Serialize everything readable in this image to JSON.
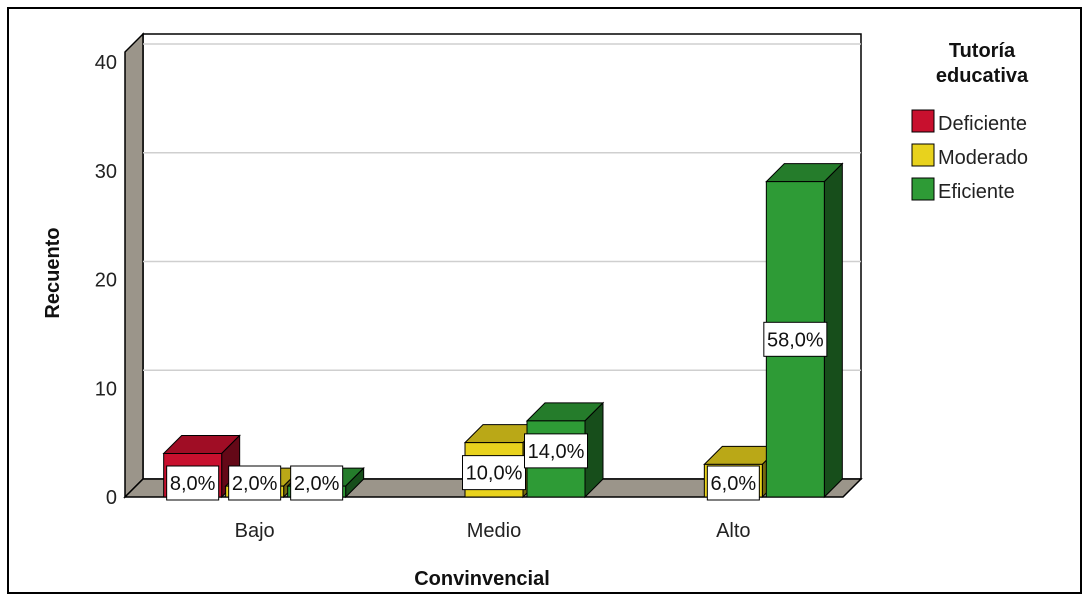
{
  "chart_data": {
    "type": "bar",
    "style": "3d-clustered",
    "xlabel": "Convinvencial",
    "ylabel": "Recuento",
    "ylim": [
      0,
      40
    ],
    "yticks": [
      0,
      10,
      20,
      30,
      40
    ],
    "grid": true,
    "categories": [
      "Bajo",
      "Medio",
      "Alto"
    ],
    "legend": {
      "title_lines": [
        "Tutoría",
        "educativa"
      ],
      "position": "top-right"
    },
    "series": [
      {
        "name": "Deficiente",
        "color": "#c8102e",
        "values": [
          4,
          0,
          0
        ],
        "labels": [
          "8,0%",
          "",
          ""
        ]
      },
      {
        "name": "Moderado",
        "color": "#e8d21d",
        "values": [
          1,
          5,
          3
        ],
        "labels": [
          "2,0%",
          "10,0%",
          "6,0%"
        ]
      },
      {
        "name": "Eficiente",
        "color": "#2e9b36",
        "values": [
          1,
          7,
          29
        ],
        "labels": [
          "2,0%",
          "14,0%",
          "58,0%"
        ]
      }
    ]
  }
}
